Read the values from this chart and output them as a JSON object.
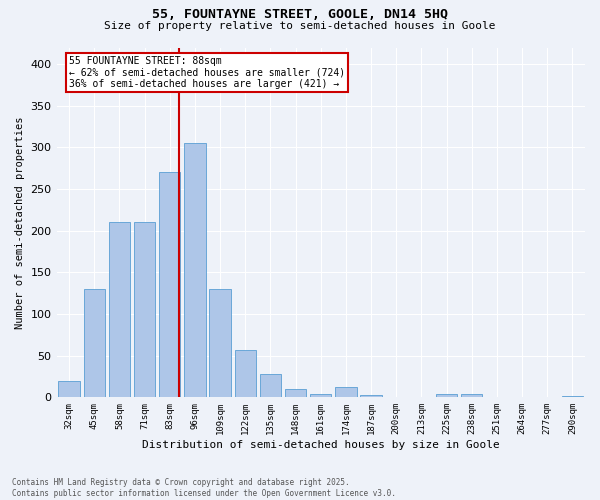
{
  "title": "55, FOUNTAYNE STREET, GOOLE, DN14 5HQ",
  "subtitle": "Size of property relative to semi-detached houses in Goole",
  "xlabel": "Distribution of semi-detached houses by size in Goole",
  "ylabel": "Number of semi-detached properties",
  "categories": [
    "32sqm",
    "45sqm",
    "58sqm",
    "71sqm",
    "83sqm",
    "96sqm",
    "109sqm",
    "122sqm",
    "135sqm",
    "148sqm",
    "161sqm",
    "174sqm",
    "187sqm",
    "200sqm",
    "213sqm",
    "225sqm",
    "238sqm",
    "251sqm",
    "264sqm",
    "277sqm",
    "290sqm"
  ],
  "values": [
    20,
    130,
    210,
    210,
    270,
    305,
    130,
    57,
    28,
    10,
    4,
    13,
    3,
    0,
    0,
    4,
    4,
    1,
    0,
    0,
    2
  ],
  "bar_color": "#aec6e8",
  "bar_edge_color": "#5a9fd4",
  "annotation_title": "55 FOUNTAYNE STREET: 88sqm",
  "annotation_line1": "← 62% of semi-detached houses are smaller (724)",
  "annotation_line2": "36% of semi-detached houses are larger (421) →",
  "vline_color": "#cc0000",
  "annotation_box_color": "#cc0000",
  "footer_line1": "Contains HM Land Registry data © Crown copyright and database right 2025.",
  "footer_line2": "Contains public sector information licensed under the Open Government Licence v3.0.",
  "ylim": [
    0,
    420
  ],
  "bg_color": "#eef2f9",
  "plot_bg_color": "#eef2f9",
  "yticks": [
    0,
    50,
    100,
    150,
    200,
    250,
    300,
    350,
    400
  ],
  "vline_pos": 4.385
}
